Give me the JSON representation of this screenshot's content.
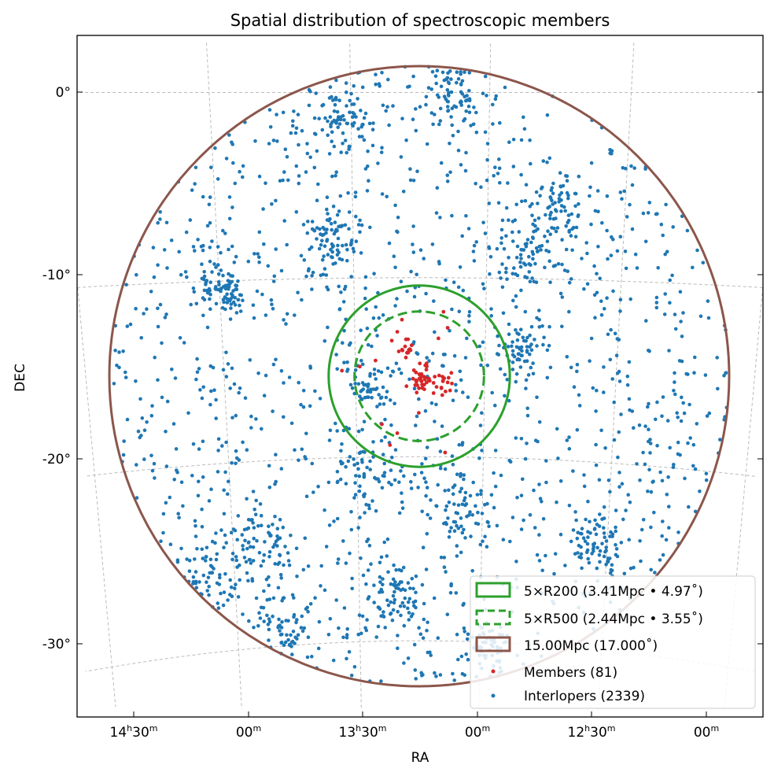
{
  "chart_data": {
    "type": "scatter",
    "title": "Spatial distribution of spectroscopic members",
    "xlabel": "RA",
    "ylabel": "DEC",
    "projection": "sky (gnomonic-like)",
    "center": {
      "ra_deg": 198.8,
      "dec_deg": -15.5
    },
    "x_ticks": [
      {
        "h": "14",
        "m": "30"
      },
      {
        "h": "",
        "m": "00"
      },
      {
        "h": "13",
        "m": "30"
      },
      {
        "h": "",
        "m": "00"
      },
      {
        "h": "12",
        "m": "30"
      },
      {
        "h": "",
        "m": "00"
      }
    ],
    "x_tick_ra_deg": [
      217.5,
      210,
      202.5,
      195,
      187.5,
      180
    ],
    "y_ticks": [
      "0°",
      "-10°",
      "-20°",
      "-30°"
    ],
    "y_tick_dec_deg": [
      0,
      -10,
      -20,
      -30
    ],
    "grid": true,
    "circles": [
      {
        "label": "5×R200 (3.41Mpc • 4.97$^\\circ$)",
        "text": "5×R200 (3.41Mpc • 4.97˚)",
        "radius_deg": 4.97,
        "style": "solid",
        "color": "#2ca02c"
      },
      {
        "label": "5×R500",
        "text": "5×R500 (2.44Mpc • 3.55˚)",
        "radius_deg": 3.55,
        "style": "dashed",
        "color": "#2ca02c"
      },
      {
        "label": "15.00Mpc",
        "text": "15.00Mpc (17.000˚)",
        "radius_deg": 17.0,
        "style": "solid",
        "color": "#8c564b"
      }
    ],
    "series": [
      {
        "name": "Members (81)",
        "count": 81,
        "color": "#d62728"
      },
      {
        "name": "Interlopers (2339)",
        "count": 2339,
        "color": "#1f77b4"
      }
    ],
    "legend_position": "lower-right"
  }
}
